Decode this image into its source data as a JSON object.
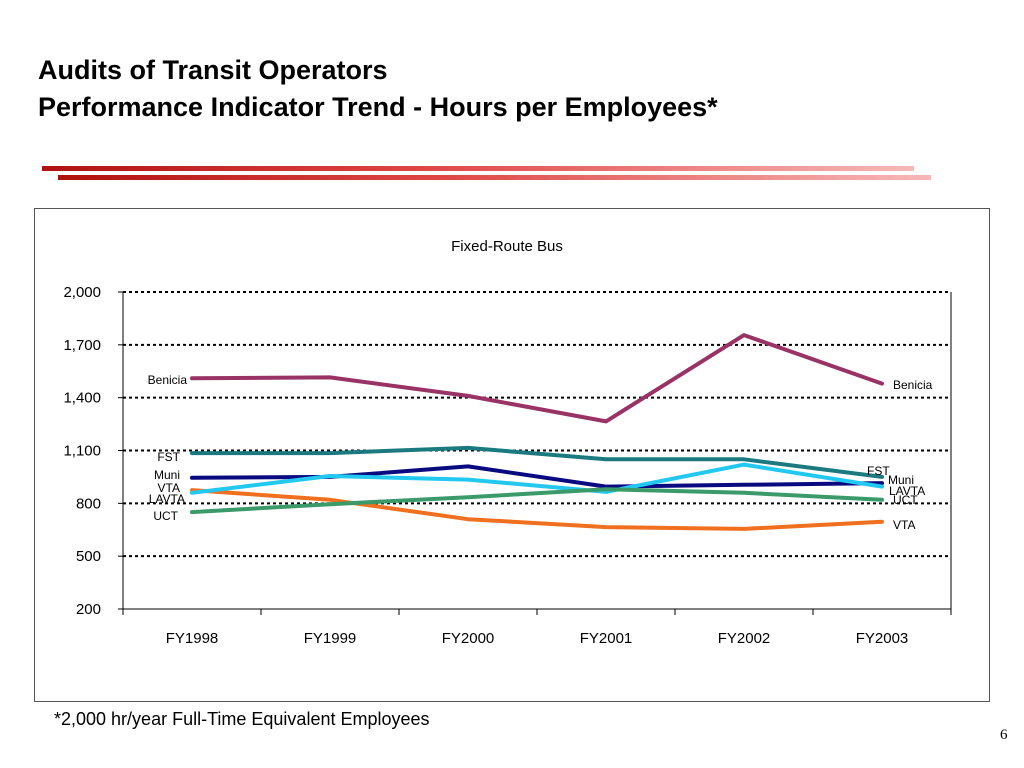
{
  "slide": {
    "title_line1": "Audits of Transit Operators",
    "title_line2": "Performance Indicator Trend - Hours per Employees*",
    "footnote": "*2,000 hr/year Full-Time Equivalent Employees",
    "page_number": "6"
  },
  "chart_data": {
    "type": "line",
    "title": "Fixed-Route Bus",
    "xlabel": "",
    "ylabel": "",
    "categories": [
      "FY1998",
      "FY1999",
      "FY2000",
      "FY2001",
      "FY2002",
      "FY2003"
    ],
    "ylim": [
      200,
      2000
    ],
    "yticks": [
      200,
      500,
      800,
      1100,
      1400,
      1700,
      2000
    ],
    "ytick_labels": [
      "200",
      "500",
      "800",
      "1,100",
      "1,400",
      "1,700",
      "2,000"
    ],
    "grid": true,
    "series": [
      {
        "name": "Benicia",
        "color": "#993366",
        "values": [
          1510,
          1515,
          1410,
          1265,
          1755,
          1480
        ]
      },
      {
        "name": "FST",
        "color": "#1a7a80",
        "values": [
          1085,
          1085,
          1115,
          1050,
          1050,
          950
        ]
      },
      {
        "name": "Muni",
        "color": "#0a0a80",
        "values": [
          945,
          950,
          1010,
          895,
          905,
          915
        ]
      },
      {
        "name": "VTA",
        "color": "#f07020",
        "values": [
          875,
          820,
          710,
          665,
          655,
          695
        ]
      },
      {
        "name": "LAVTA",
        "color": "#22c8f0",
        "values": [
          860,
          955,
          935,
          865,
          1020,
          895
        ]
      },
      {
        "name": "UCT",
        "color": "#3a9a6a",
        "values": [
          750,
          795,
          835,
          880,
          860,
          820
        ]
      }
    ],
    "left_labels": [
      "Benicia",
      "FST",
      "Muni",
      "VTA",
      "LAVTA",
      "UCT"
    ],
    "right_labels": [
      "Benicia",
      "FST",
      "Muni",
      "LAVTA",
      "UCT",
      "VTA"
    ]
  }
}
